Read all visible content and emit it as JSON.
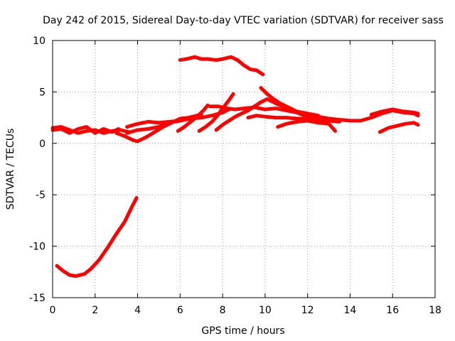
{
  "chart_data": {
    "type": "line",
    "title": "Day 242 of 2015, Sidereal Day-to-day VTEC variation (SDTVAR) for receiver sass",
    "xlabel": "GPS time / hours",
    "ylabel": "SDTVAR / TECUs",
    "xlim": [
      0,
      18
    ],
    "ylim": [
      -15,
      10
    ],
    "xticks": [
      0,
      2,
      4,
      6,
      8,
      10,
      12,
      14,
      16,
      18
    ],
    "yticks": [
      -15,
      -10,
      -5,
      0,
      5,
      10
    ],
    "grid": true,
    "line_color": "#ff0000",
    "series": [
      {
        "name": "arc-low-left",
        "points": [
          [
            0.2,
            -11.9
          ],
          [
            0.5,
            -12.4
          ],
          [
            0.8,
            -12.8
          ],
          [
            1.1,
            -12.9
          ],
          [
            1.5,
            -12.7
          ],
          [
            1.8,
            -12.2
          ],
          [
            2.2,
            -11.3
          ],
          [
            2.6,
            -10.1
          ],
          [
            3.0,
            -8.8
          ],
          [
            3.4,
            -7.6
          ],
          [
            3.7,
            -6.3
          ],
          [
            3.95,
            -5.3
          ]
        ]
      },
      {
        "name": "arc-left-band-a",
        "points": [
          [
            0,
            1.5
          ],
          [
            0.4,
            1.6
          ],
          [
            0.8,
            1.3
          ],
          [
            1.2,
            1.0
          ],
          [
            1.6,
            1.2
          ],
          [
            2.0,
            1.3
          ],
          [
            2.4,
            1.0
          ],
          [
            2.8,
            1.2
          ],
          [
            3.2,
            1.3
          ],
          [
            3.6,
            1.1
          ]
        ]
      },
      {
        "name": "arc-left-band-b",
        "points": [
          [
            0,
            1.3
          ],
          [
            0.4,
            1.4
          ],
          [
            0.8,
            1.0
          ],
          [
            1.2,
            1.4
          ],
          [
            1.6,
            1.6
          ],
          [
            2.0,
            1.0
          ],
          [
            2.4,
            1.4
          ],
          [
            2.8,
            1.1
          ],
          [
            3.1,
            1.4
          ]
        ]
      },
      {
        "name": "arc-dip-4h",
        "points": [
          [
            3.0,
            1.0
          ],
          [
            3.4,
            0.7
          ],
          [
            3.8,
            0.3
          ],
          [
            4.0,
            0.2
          ],
          [
            4.4,
            0.6
          ],
          [
            4.8,
            1.1
          ],
          [
            5.2,
            1.6
          ],
          [
            5.6,
            2.0
          ],
          [
            6.0,
            2.4
          ],
          [
            6.4,
            2.5
          ],
          [
            6.8,
            2.7
          ],
          [
            7.0,
            2.8
          ]
        ]
      },
      {
        "name": "arc-3.5-to-6",
        "points": [
          [
            3.5,
            1.6
          ],
          [
            4.0,
            1.9
          ],
          [
            4.5,
            2.1
          ],
          [
            5.0,
            2.0
          ],
          [
            5.5,
            2.1
          ],
          [
            6.0,
            2.2
          ]
        ]
      },
      {
        "name": "arc-3.5-to-7",
        "points": [
          [
            3.5,
            1.0
          ],
          [
            4.0,
            1.3
          ],
          [
            4.5,
            1.4
          ],
          [
            5.0,
            1.6
          ],
          [
            5.5,
            2.0
          ],
          [
            6.0,
            2.2
          ],
          [
            6.5,
            2.4
          ],
          [
            7.0,
            2.5
          ],
          [
            7.5,
            2.7
          ],
          [
            8.0,
            3.0
          ],
          [
            8.3,
            3.3
          ]
        ]
      },
      {
        "name": "arc-6-to-7-rise",
        "points": [
          [
            5.9,
            1.2
          ],
          [
            6.2,
            1.6
          ],
          [
            6.5,
            2.1
          ],
          [
            6.8,
            2.6
          ],
          [
            7.1,
            3.2
          ],
          [
            7.3,
            3.7
          ]
        ]
      },
      {
        "name": "arc-high-8",
        "points": [
          [
            6.0,
            8.1
          ],
          [
            6.3,
            8.2
          ],
          [
            6.7,
            8.4
          ],
          [
            7.0,
            8.2
          ],
          [
            7.3,
            8.2
          ],
          [
            7.7,
            8.1
          ],
          [
            8.0,
            8.2
          ],
          [
            8.4,
            8.4
          ],
          [
            8.7,
            8.1
          ],
          [
            9.0,
            7.6
          ],
          [
            9.3,
            7.2
          ],
          [
            9.6,
            7.1
          ],
          [
            9.9,
            6.7
          ]
        ]
      },
      {
        "name": "arc-7-to-8.5-rise",
        "points": [
          [
            6.9,
            1.2
          ],
          [
            7.2,
            1.6
          ],
          [
            7.5,
            2.1
          ],
          [
            7.8,
            2.8
          ],
          [
            8.0,
            3.4
          ],
          [
            8.3,
            4.2
          ],
          [
            8.5,
            4.8
          ]
        ]
      },
      {
        "name": "arc-7.5-to-17",
        "points": [
          [
            7.4,
            3.6
          ],
          [
            7.8,
            3.6
          ],
          [
            8.2,
            3.4
          ],
          [
            8.6,
            3.3
          ],
          [
            9.0,
            3.4
          ],
          [
            9.5,
            3.5
          ],
          [
            10.0,
            3.3
          ],
          [
            10.5,
            3.4
          ],
          [
            11.0,
            3.2
          ],
          [
            11.5,
            3.0
          ],
          [
            12.0,
            2.8
          ],
          [
            12.5,
            2.6
          ],
          [
            13.0,
            2.4
          ],
          [
            13.5,
            2.3
          ],
          [
            14.0,
            2.2
          ],
          [
            14.5,
            2.2
          ],
          [
            15.0,
            2.5
          ],
          [
            15.5,
            2.9
          ],
          [
            16.0,
            3.2
          ],
          [
            16.5,
            3.0
          ],
          [
            17.0,
            2.9
          ],
          [
            17.2,
            2.7
          ]
        ]
      },
      {
        "name": "arc-8-to-10-bump",
        "points": [
          [
            7.7,
            1.3
          ],
          [
            8.0,
            1.8
          ],
          [
            8.3,
            2.2
          ],
          [
            8.6,
            2.6
          ],
          [
            8.9,
            2.9
          ],
          [
            9.2,
            3.2
          ],
          [
            9.5,
            3.6
          ],
          [
            9.8,
            4.0
          ],
          [
            10.1,
            4.3
          ],
          [
            10.4,
            4.0
          ],
          [
            10.7,
            3.7
          ],
          [
            11.0,
            3.5
          ],
          [
            11.5,
            3.1
          ],
          [
            12.0,
            2.9
          ],
          [
            12.5,
            2.7
          ]
        ]
      },
      {
        "name": "arc-9.8-peak",
        "points": [
          [
            9.8,
            5.4
          ],
          [
            10.1,
            4.8
          ],
          [
            10.4,
            4.3
          ],
          [
            10.7,
            3.9
          ],
          [
            11.0,
            3.6
          ],
          [
            11.3,
            3.3
          ],
          [
            11.6,
            2.9
          ],
          [
            12.0,
            2.6
          ],
          [
            12.5,
            2.4
          ],
          [
            13.0,
            2.2
          ],
          [
            13.5,
            2.1
          ]
        ]
      },
      {
        "name": "arc-9-to-13",
        "points": [
          [
            9.2,
            2.5
          ],
          [
            9.6,
            2.7
          ],
          [
            10.0,
            2.6
          ],
          [
            10.5,
            2.5
          ],
          [
            11.0,
            2.5
          ],
          [
            11.5,
            2.4
          ],
          [
            12.0,
            2.4
          ],
          [
            12.5,
            2.2
          ],
          [
            13.0,
            2.1
          ]
        ]
      },
      {
        "name": "arc-10.5-to-12",
        "points": [
          [
            10.6,
            1.6
          ],
          [
            11.0,
            1.9
          ],
          [
            11.5,
            2.1
          ],
          [
            12.0,
            2.2
          ],
          [
            12.5,
            2.0
          ],
          [
            13.0,
            1.9
          ],
          [
            13.3,
            1.2
          ]
        ]
      },
      {
        "name": "arc-15.5-to-17",
        "points": [
          [
            15.4,
            1.1
          ],
          [
            15.8,
            1.5
          ],
          [
            16.2,
            1.7
          ],
          [
            16.6,
            1.9
          ],
          [
            17.0,
            2.0
          ],
          [
            17.2,
            1.8
          ]
        ]
      },
      {
        "name": "arc-15-to-17-upper",
        "points": [
          [
            15.0,
            2.8
          ],
          [
            15.5,
            3.1
          ],
          [
            16.0,
            3.3
          ],
          [
            16.5,
            3.1
          ],
          [
            17.0,
            3.0
          ],
          [
            17.2,
            2.9
          ]
        ]
      }
    ]
  }
}
